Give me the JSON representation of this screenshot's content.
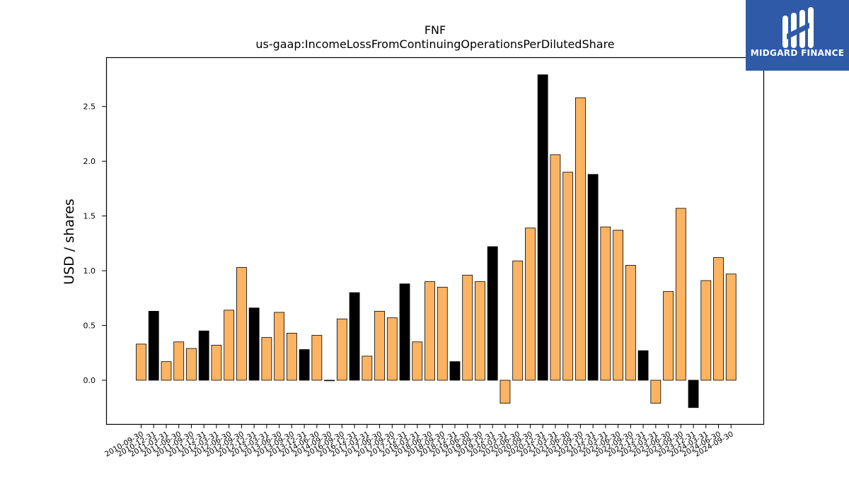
{
  "brand": {
    "name": "MIDGARD FINANCE",
    "background": "#2f5aa8"
  },
  "chart_data": {
    "type": "bar",
    "title": "FNF",
    "subtitle": "us-gaap:IncomeLossFromContinuingOperationsPerDilutedShare",
    "xlabel": "",
    "ylabel": "USD / shares",
    "ylim": [
      -0.4,
      2.95
    ],
    "yticks": [
      0.0,
      0.5,
      1.0,
      1.5,
      2.0,
      2.5
    ],
    "grid": false,
    "colors": {
      "quarterly": "#fdb462",
      "annual": "#000000",
      "edge": "#000000"
    },
    "categories": [
      "2010-09-30",
      "2010-12-31",
      "2011-03-31",
      "2011-06-30",
      "2011-09-30",
      "2011-12-31",
      "2012-03-31",
      "2012-06-30",
      "2012-09-30",
      "2012-12-31",
      "2013-03-31",
      "2013-06-30",
      "2013-09-30",
      "2013-12-31",
      "2014-06-30",
      "2014-09-30",
      "2016-09-30",
      "2016-12-31",
      "2017-03-31",
      "2017-06-30",
      "2017-09-30",
      "2017-12-31",
      "2018-03-31",
      "2018-06-30",
      "2018-09-30",
      "2018-12-31",
      "2019-06-30",
      "2019-09-30",
      "2019-12-31",
      "2020-03-31",
      "2020-06-30",
      "2020-09-30",
      "2020-12-31",
      "2021-03-31",
      "2021-06-30",
      "2021-09-30",
      "2021-12-31",
      "2022-03-31",
      "2022-06-30",
      "2022-09-30",
      "2022-12-31",
      "2023-03-31",
      "2023-06-30",
      "2023-09-30",
      "2023-12-31",
      "2024-03-31",
      "2024-06-30",
      "2024-09-30"
    ],
    "values": [
      0.33,
      0.63,
      0.17,
      0.35,
      0.29,
      0.45,
      0.32,
      0.64,
      1.03,
      0.66,
      0.39,
      0.62,
      0.43,
      0.28,
      0.41,
      0.0,
      0.56,
      0.8,
      0.22,
      0.63,
      0.57,
      0.88,
      0.35,
      0.9,
      0.85,
      0.17,
      0.96,
      0.9,
      1.22,
      -0.21,
      1.09,
      1.39,
      2.79,
      2.06,
      1.9,
      2.58,
      1.88,
      1.4,
      1.37,
      1.05,
      0.27,
      -0.21,
      0.81,
      1.57,
      -0.25,
      0.91,
      1.12,
      0.97
    ],
    "annual": [
      false,
      true,
      false,
      false,
      false,
      true,
      false,
      false,
      false,
      true,
      false,
      false,
      false,
      true,
      false,
      false,
      false,
      true,
      false,
      false,
      false,
      true,
      false,
      false,
      false,
      true,
      false,
      false,
      true,
      false,
      false,
      false,
      true,
      false,
      false,
      false,
      true,
      false,
      false,
      false,
      true,
      false,
      false,
      false,
      true,
      false,
      false,
      false
    ]
  }
}
